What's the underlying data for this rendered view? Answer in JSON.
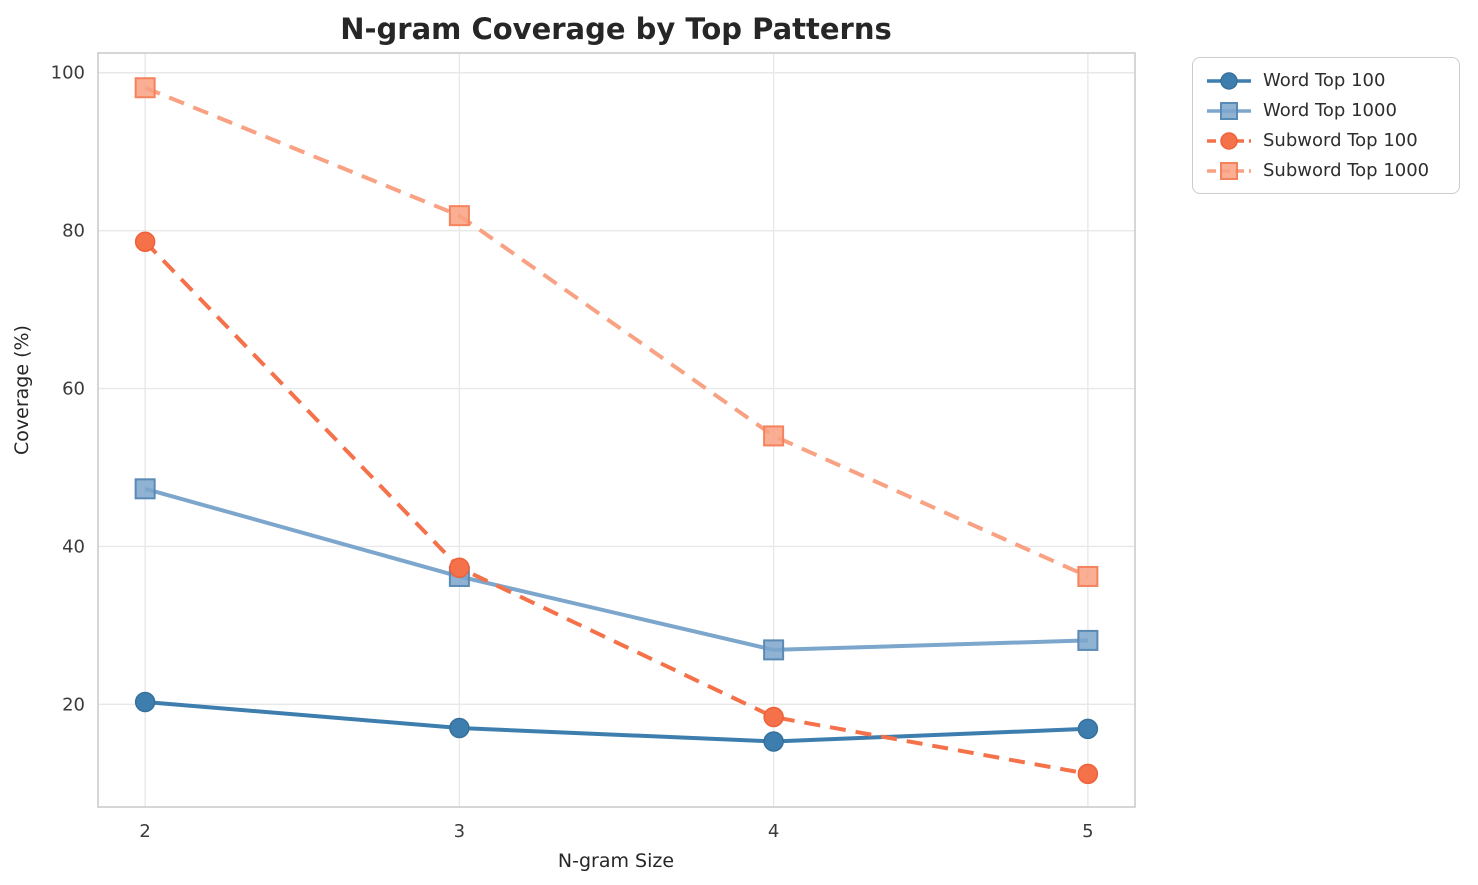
{
  "chart_data": {
    "type": "line",
    "title": "N-gram Coverage by Top Patterns",
    "xlabel": "N-gram Size",
    "ylabel": "Coverage (%)",
    "x": [
      2,
      3,
      4,
      5
    ],
    "xticks": [
      2,
      3,
      4,
      5
    ],
    "yticks": [
      20,
      40,
      60,
      80,
      100
    ],
    "xlim": [
      1.85,
      5.15
    ],
    "ylim": [
      7,
      102.5
    ],
    "grid": true,
    "legend_position": "outside-top-right",
    "series": [
      {
        "name": "Word Top 100",
        "values": [
          20.3,
          17.0,
          15.3,
          16.9
        ],
        "color": "#3d7eae",
        "edge_color": "#36719c",
        "marker": "circle",
        "line_style": "solid"
      },
      {
        "name": "Word Top 1000",
        "values": [
          47.3,
          36.2,
          26.9,
          28.1
        ],
        "color": "#7ca6cc",
        "edge_color": "#5a8ab6",
        "marker": "square",
        "line_style": "solid"
      },
      {
        "name": "Subword Top 100",
        "values": [
          78.6,
          37.3,
          18.4,
          11.2
        ],
        "color": "#f4714a",
        "edge_color": "#ef6138",
        "marker": "circle",
        "line_style": "dashed"
      },
      {
        "name": "Subword Top 1000",
        "values": [
          98.1,
          81.9,
          54.0,
          36.2
        ],
        "color": "#f9a183",
        "edge_color": "#f4835d",
        "marker": "square",
        "line_style": "dashed"
      }
    ],
    "style": {
      "grid_color": "#e8e8e8",
      "spine_color": "#cccccc",
      "tick_label_color": "#3b3b3b",
      "title_color": "#262626"
    }
  }
}
